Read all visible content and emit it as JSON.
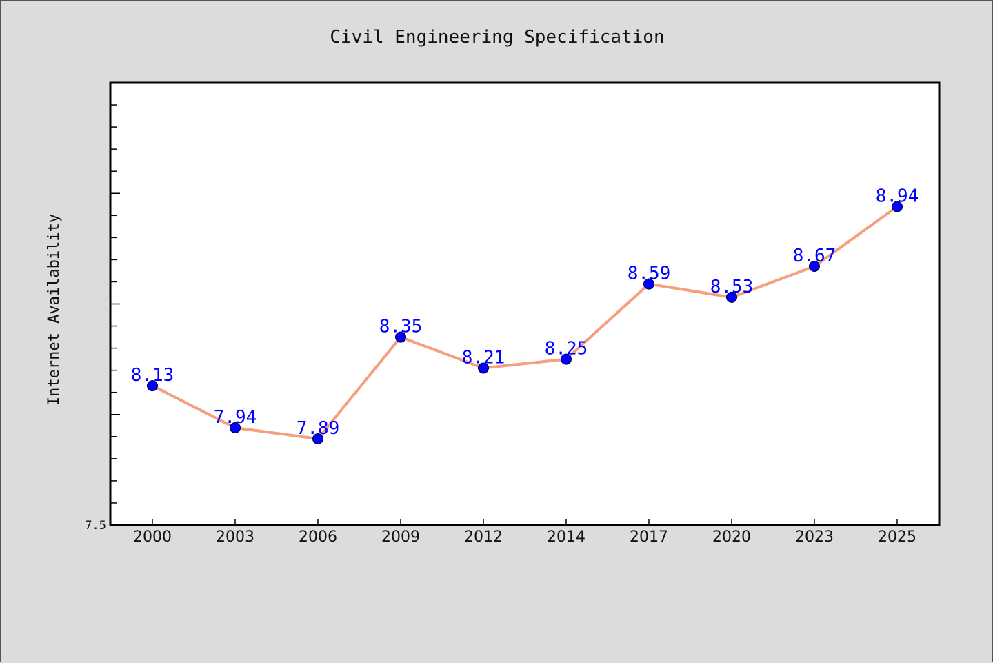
{
  "chart_data": {
    "type": "line",
    "title": "Civil Engineering Specification",
    "xlabel": "",
    "ylabel": "Internet Availability",
    "categories": [
      "2000",
      "2003",
      "2006",
      "2009",
      "2012",
      "2014",
      "2017",
      "2020",
      "2023",
      "2025"
    ],
    "series": [
      {
        "values": [
          8.13,
          7.94,
          7.89,
          8.35,
          8.21,
          8.25,
          8.59,
          8.53,
          8.67,
          8.94
        ]
      }
    ],
    "data_labels": [
      "8.13",
      "7.94",
      "7.89",
      "8.35",
      "8.21",
      "8.25",
      "8.59",
      "8.53",
      "8.67",
      "8.94"
    ],
    "ylim": [
      7.5,
      9.5
    ],
    "y_tick_labels": [
      {
        "value": 7.5,
        "label": "7.5"
      }
    ],
    "grid": false,
    "line_color": "#f4a07e",
    "marker_color": "#0000ff",
    "label_color": "#0000ff"
  }
}
